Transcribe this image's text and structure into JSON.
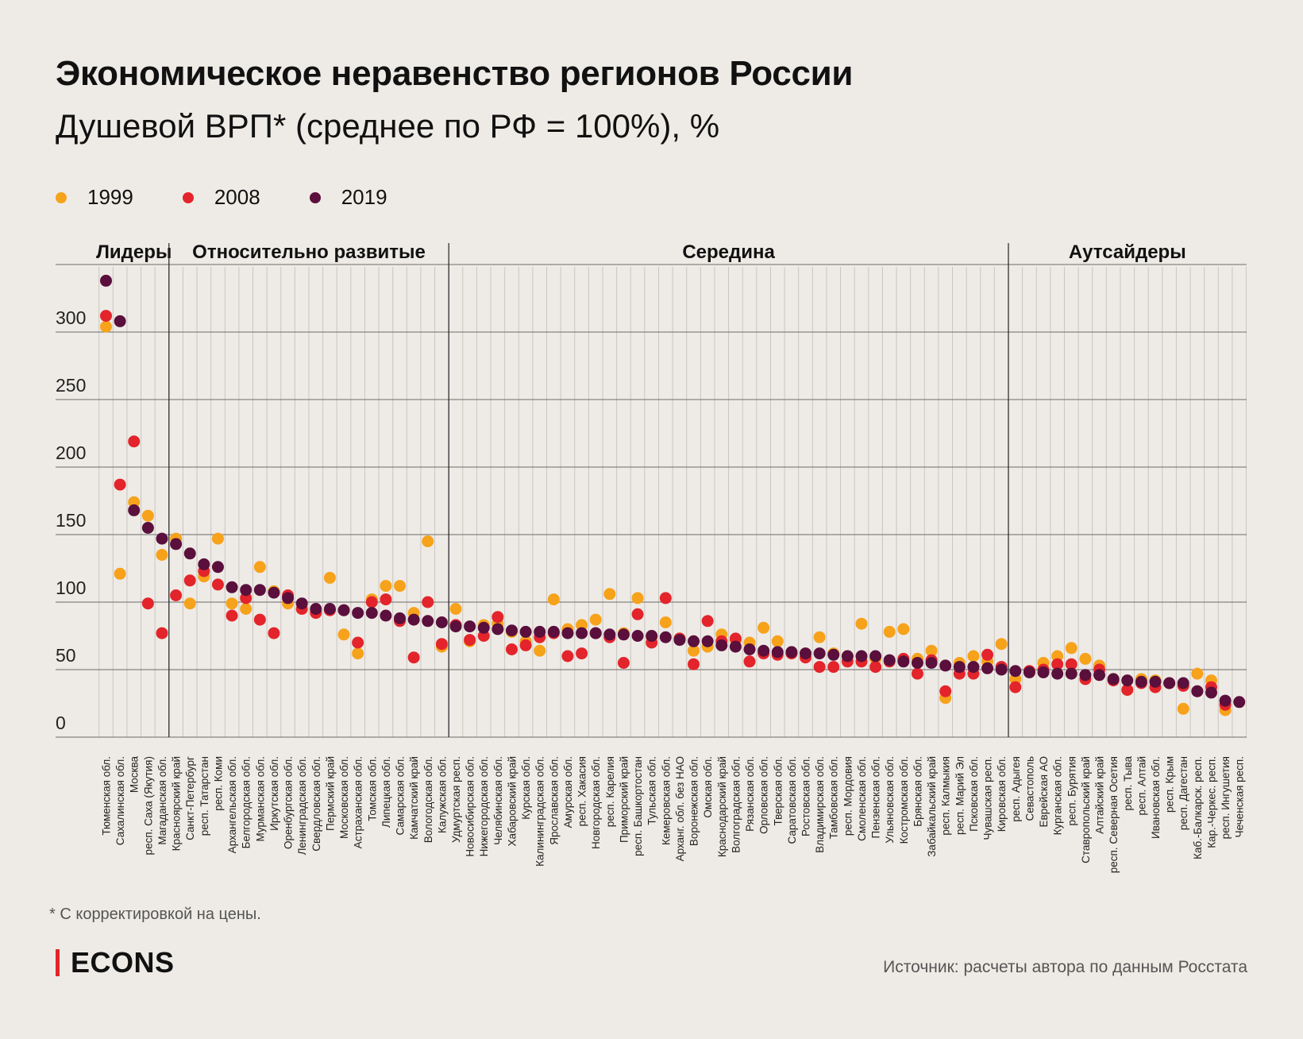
{
  "title": "Экономическое неравенство регионов России",
  "subtitle": "Душевой ВРП* (среднее по РФ = 100%), %",
  "legend": [
    {
      "label": "1999",
      "color": "#f7a21b"
    },
    {
      "label": "2008",
      "color": "#e3242b"
    },
    {
      "label": "2019",
      "color": "#5a0f3c"
    }
  ],
  "footnote": "* С корректировкой на цены.",
  "logo": "ECONS",
  "source": "Источник: расчеты автора по данным Росстата",
  "chart_data": {
    "type": "scatter",
    "ylim": [
      0,
      350
    ],
    "yticks": [
      0,
      50,
      100,
      150,
      200,
      250,
      300
    ],
    "grid": true,
    "legend_position": "top-left",
    "groups": [
      {
        "label": "Лидеры",
        "start": 0,
        "end": 4
      },
      {
        "label": "Относительно развитые",
        "start": 5,
        "end": 24
      },
      {
        "label": "Середина",
        "start": 25,
        "end": 64
      },
      {
        "label": "Аутсайдеры",
        "start": 65,
        "end": 81
      }
    ],
    "categories": [
      "Тюменская обл.",
      "Сахалинская обл.",
      "Москва",
      "респ. Саха (Якутия)",
      "Магаданская обл.",
      "Красноярский край",
      "Санкт-Петербург",
      "респ. Татарстан",
      "респ. Коми",
      "Архангельская обл.",
      "Белгородская обл.",
      "Мурманская обл.",
      "Иркутская обл.",
      "Оренбургская обл.",
      "Ленинградская обл.",
      "Свердловская обл.",
      "Пермский край",
      "Московская обл.",
      "Астраханская обл.",
      "Томская обл.",
      "Липецкая обл.",
      "Самарская обл.",
      "Камчатский край",
      "Вологодская обл.",
      "Калужская обл.",
      "Удмуртская респ.",
      "Новосибирская обл.",
      "Нижегородская обл.",
      "Челябинская обл.",
      "Хабаровский край",
      "Курская обл.",
      "Калининградская обл.",
      "Ярославская обл.",
      "Амурская обл.",
      "респ. Хакасия",
      "Новгородская обл.",
      "респ. Карелия",
      "Приморский край",
      "респ. Башкортостан",
      "Тульская обл.",
      "Кемеровская обл.",
      "Арханг. обл. без НАО",
      "Воронежская обл.",
      "Омская обл.",
      "Краснодарский край",
      "Волгоградская обл.",
      "Рязанская обл.",
      "Орловская обл.",
      "Тверская обл.",
      "Саратовская обл.",
      "Ростовская обл.",
      "Владимирская обл.",
      "Тамбовская обл.",
      "респ. Мордовия",
      "Смоленская обл.",
      "Пензенская обл.",
      "Ульяновская обл.",
      "Костромская обл.",
      "Брянская обл.",
      "Забайкальский край",
      "респ. Калмыкия",
      "респ. Марий Эл",
      "Псковская обл.",
      "Чувашская респ.",
      "Кировская обл.",
      "респ. Адыгея",
      "Севастополь",
      "Еврейская АО",
      "Курганская обл.",
      "респ. Бурятия",
      "Ставропольский край",
      "Алтайский край",
      "респ. Северная Осетия",
      "респ. Тыва",
      "респ. Алтай",
      "Ивановская обл.",
      "респ. Крым",
      "респ. Дагестан",
      "Каб.-Балкарск. респ.",
      "Кар.-Черкес. респ.",
      "респ. Ингушетия",
      "Чеченская респ."
    ],
    "series": [
      {
        "name": "1999",
        "color": "#f7a21b",
        "values": [
          304,
          121,
          174,
          164,
          135,
          147,
          99,
          119,
          147,
          99,
          95,
          126,
          108,
          99,
          95,
          93,
          118,
          76,
          62,
          102,
          112,
          112,
          92,
          145,
          67,
          95,
          71,
          83,
          84,
          78,
          71,
          64,
          102,
          80,
          83,
          87,
          106,
          77,
          103,
          74,
          85,
          73,
          64,
          67,
          76,
          72,
          70,
          81,
          71,
          62,
          62,
          74,
          62,
          60,
          84,
          58,
          78,
          80,
          58,
          64,
          29,
          55,
          60,
          56,
          69,
          43,
          49,
          55,
          60,
          66,
          58,
          53,
          43,
          35,
          43,
          42,
          40,
          21,
          47,
          42,
          20,
          null
        ]
      },
      {
        "name": "2008",
        "color": "#e3242b",
        "values": [
          312,
          187,
          219,
          99,
          77,
          105,
          116,
          123,
          113,
          90,
          103,
          87,
          77,
          105,
          95,
          92,
          94,
          94,
          70,
          100,
          102,
          86,
          59,
          100,
          69,
          83,
          72,
          75,
          89,
          65,
          68,
          74,
          77,
          60,
          62,
          77,
          74,
          55,
          91,
          70,
          103,
          73,
          54,
          86,
          71,
          73,
          56,
          62,
          61,
          62,
          59,
          52,
          52,
          56,
          56,
          52,
          56,
          58,
          47,
          57,
          34,
          47,
          47,
          61,
          52,
          37,
          49,
          50,
          54,
          54,
          43,
          50,
          42,
          35,
          40,
          37,
          40,
          38,
          34,
          37,
          24,
          null
        ]
      },
      {
        "name": "2019",
        "color": "#5a0f3c",
        "values": [
          338,
          308,
          168,
          155,
          147,
          143,
          136,
          128,
          126,
          111,
          109,
          109,
          107,
          103,
          99,
          95,
          95,
          94,
          92,
          92,
          90,
          88,
          87,
          86,
          85,
          82,
          82,
          81,
          80,
          79,
          78,
          78,
          78,
          77,
          77,
          77,
          76,
          76,
          75,
          75,
          74,
          72,
          71,
          71,
          68,
          67,
          65,
          64,
          63,
          63,
          62,
          62,
          61,
          60,
          60,
          60,
          57,
          56,
          55,
          55,
          53,
          52,
          52,
          51,
          50,
          49,
          48,
          48,
          47,
          47,
          46,
          46,
          43,
          42,
          41,
          41,
          40,
          40,
          34,
          33,
          27,
          26
        ]
      }
    ]
  }
}
